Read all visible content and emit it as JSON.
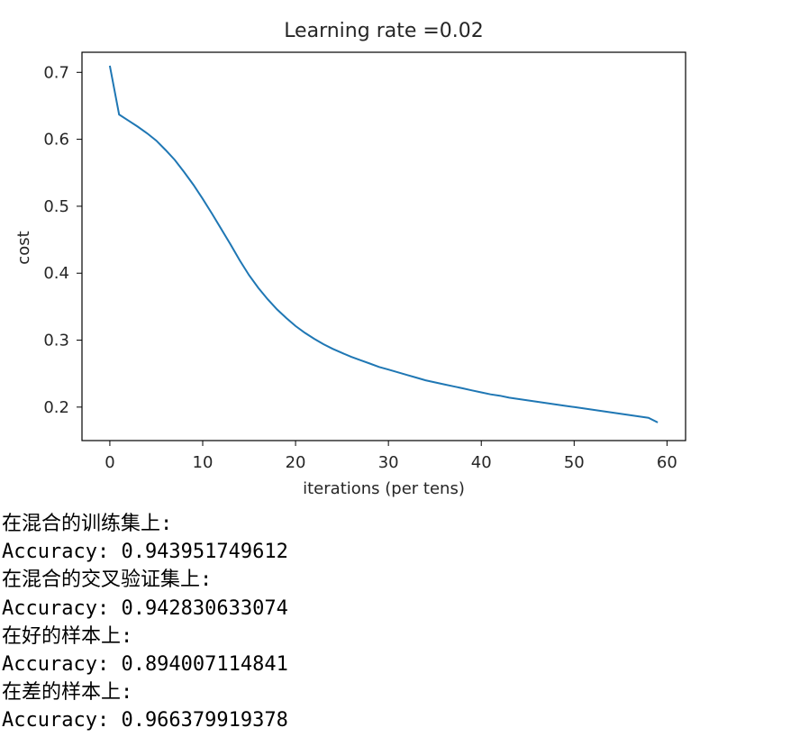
{
  "chart_data": {
    "type": "line",
    "title": "Learning rate =0.02",
    "xlabel": "iterations (per tens)",
    "ylabel": "cost",
    "xlim": [
      -3,
      62
    ],
    "ylim": [
      0.15,
      0.73
    ],
    "xticks": [
      0,
      10,
      20,
      30,
      40,
      50,
      60
    ],
    "xtick_labels": [
      "0",
      "10",
      "20",
      "30",
      "40",
      "50",
      "60"
    ],
    "yticks": [
      0.2,
      0.3,
      0.4,
      0.5,
      0.6,
      0.7
    ],
    "ytick_labels": [
      "0.2",
      "0.3",
      "0.4",
      "0.5",
      "0.6",
      "0.7"
    ],
    "grid": false,
    "line_color": "#1f77b4",
    "series": [
      {
        "x": [
          0,
          1,
          2,
          3,
          4,
          5,
          6,
          7,
          8,
          9,
          10,
          11,
          12,
          13,
          14,
          15,
          16,
          17,
          18,
          19,
          20,
          21,
          22,
          23,
          24,
          25,
          26,
          27,
          28,
          29,
          30,
          31,
          32,
          33,
          34,
          35,
          36,
          37,
          38,
          39,
          40,
          41,
          42,
          43,
          44,
          45,
          46,
          47,
          48,
          49,
          50,
          51,
          52,
          53,
          54,
          55,
          56,
          57,
          58,
          59
        ],
        "y": [
          0.71,
          0.637,
          0.628,
          0.619,
          0.609,
          0.598,
          0.584,
          0.569,
          0.551,
          0.532,
          0.511,
          0.489,
          0.466,
          0.443,
          0.419,
          0.397,
          0.378,
          0.361,
          0.346,
          0.333,
          0.321,
          0.311,
          0.302,
          0.294,
          0.287,
          0.281,
          0.275,
          0.27,
          0.265,
          0.26,
          0.256,
          0.252,
          0.248,
          0.244,
          0.24,
          0.237,
          0.234,
          0.231,
          0.228,
          0.225,
          0.222,
          0.219,
          0.217,
          0.214,
          0.212,
          0.21,
          0.208,
          0.206,
          0.204,
          0.202,
          0.2,
          0.198,
          0.196,
          0.194,
          0.192,
          0.19,
          0.188,
          0.186,
          0.184,
          0.177
        ]
      }
    ]
  },
  "output": {
    "lines": [
      "在混合的训练集上:",
      "Accuracy: 0.943951749612",
      "在混合的交叉验证集上:",
      "Accuracy: 0.942830633074",
      "在好的样本上:",
      "Accuracy: 0.894007114841",
      "在差的样本上:",
      "Accuracy: 0.966379919378"
    ]
  }
}
